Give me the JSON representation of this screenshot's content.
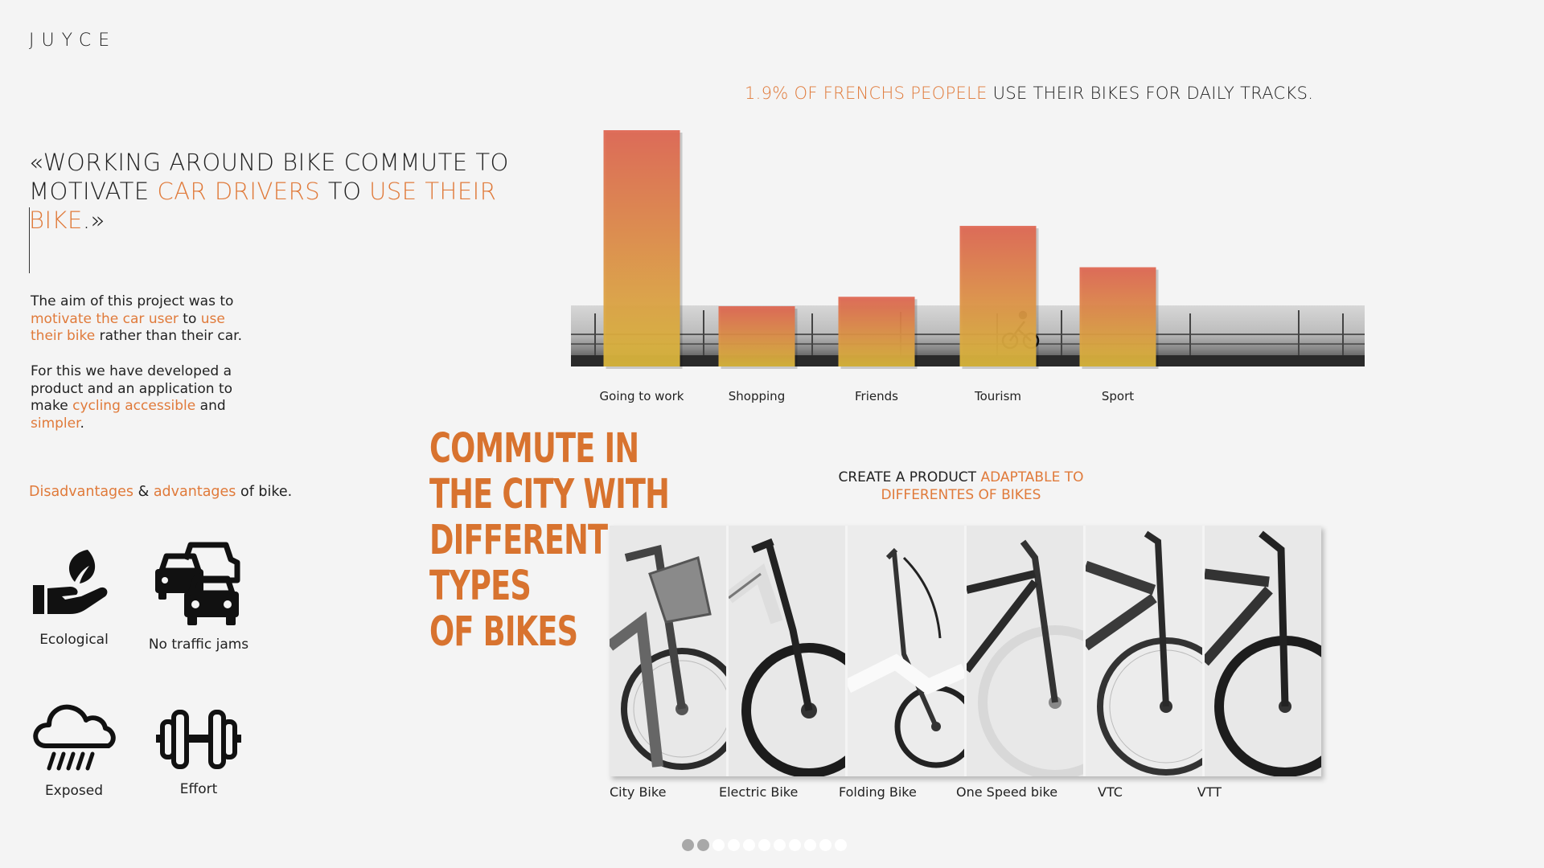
{
  "brand": {
    "logo": "JUYCE"
  },
  "quote": {
    "open": "«WORKING AROUND BIKE COMMUTE TO MOTIVATE ",
    "em1": "CAR DRIVERS",
    "mid": " TO ",
    "em2": "USE THEIR BIKE",
    "close": ".»"
  },
  "intro": {
    "p1": {
      "a": "The aim of this project was to ",
      "b": "motivate the car user",
      "c": " to ",
      "d": "use their bike",
      "e": " rather than their car."
    },
    "p2": {
      "a": "For this we have developed a product and an application to make ",
      "b": "cycling accessible",
      "c": " and ",
      "d": "simpler",
      "e": "."
    }
  },
  "advantages": {
    "heading": {
      "a": "Disadvantages",
      "b": " & ",
      "c": "advantages",
      "d": " of bike."
    },
    "items": [
      {
        "label": "Ecological",
        "icon": "eco-hand-leaf-icon"
      },
      {
        "label": "No traffic jams",
        "icon": "traffic-cars-icon"
      },
      {
        "label": "Exposed",
        "icon": "rain-cloud-icon"
      },
      {
        "label": "Effort",
        "icon": "dumbbell-icon"
      }
    ]
  },
  "chart_title": {
    "em": "1.9% OF FRENCHS PEOPELE",
    "rest": " USE THEIR BIKES FOR DAILY TRACKS."
  },
  "chart_data": {
    "type": "bar",
    "categories": [
      "Going to work",
      "Shopping",
      "Friends",
      "Tourism",
      "Sport"
    ],
    "values": [
      100,
      25.5,
      29.5,
      59.5,
      42
    ],
    "ylim": [
      0,
      100
    ],
    "grid": false,
    "colors": {
      "top": "#de6450",
      "bottom": "#dcb93c"
    }
  },
  "commute_heading": [
    "COMMUTE IN",
    "THE CITY WITH",
    "DIFFERENT",
    "TYPES",
    "OF BIKES"
  ],
  "create": {
    "a": "CREATE A PRODUCT ",
    "b": "ADAPTABLE TO DIFFERENTES OF BIKES"
  },
  "bikes": [
    "City Bike",
    "Electric Bike",
    "Folding Bike",
    "One Speed bike",
    "VTC",
    "VTT"
  ],
  "pager": {
    "total": 11,
    "active": [
      0,
      1
    ]
  },
  "colors": {
    "accent": "#e07a3a",
    "heading": "#d8732f",
    "background": "#f4f4f4"
  }
}
